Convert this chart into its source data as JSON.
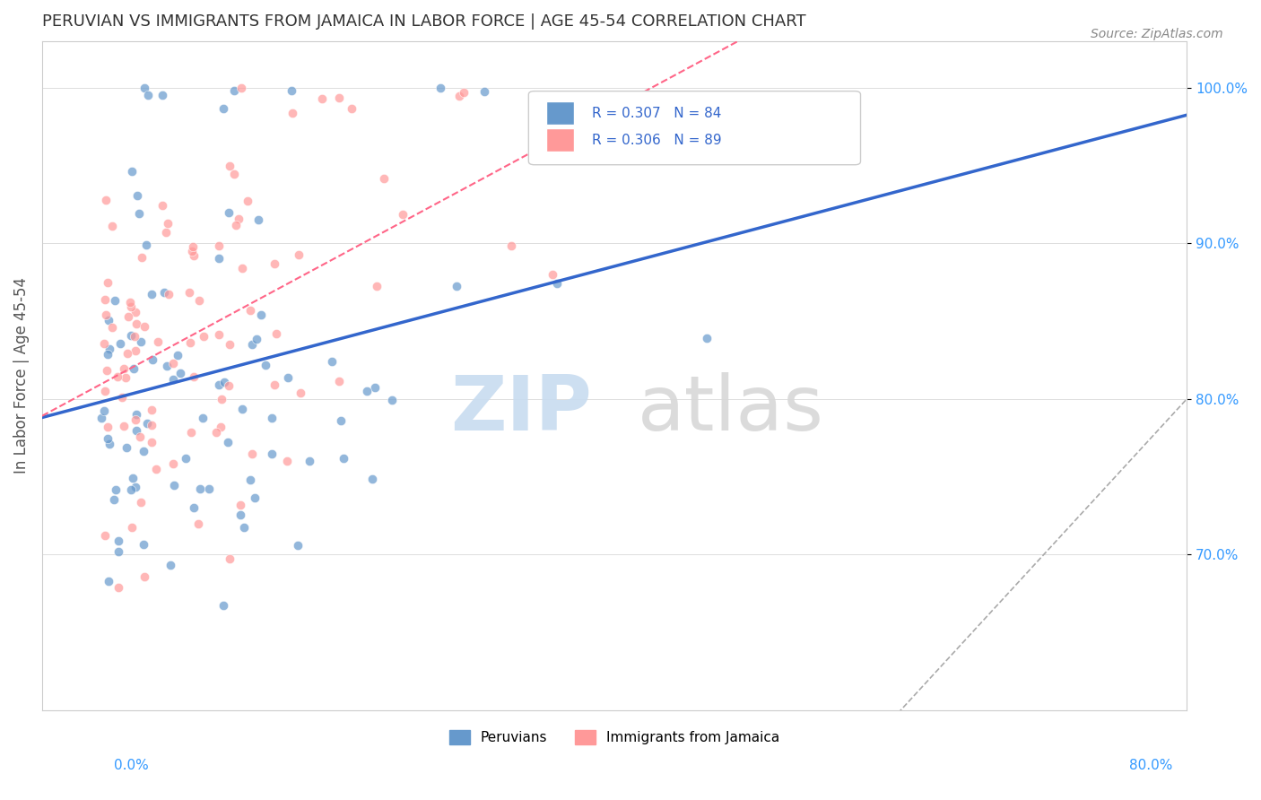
{
  "title": "PERUVIAN VS IMMIGRANTS FROM JAMAICA IN LABOR FORCE | AGE 45-54 CORRELATION CHART",
  "source": "Source: ZipAtlas.com",
  "xlabel_bottom_left": "0.0%",
  "xlabel_bottom_right": "80.0%",
  "ylabel": "In Labor Force | Age 45-54",
  "y_tick_labels": [
    "70.0%",
    "80.0%",
    "90.0%",
    "100.0%"
  ],
  "y_tick_values": [
    0.7,
    0.8,
    0.9,
    1.0
  ],
  "x_range": [
    0.0,
    0.8
  ],
  "y_range": [
    0.6,
    1.03
  ],
  "legend_blue_r": "R = 0.307",
  "legend_blue_n": "N = 84",
  "legend_pink_r": "R = 0.306",
  "legend_pink_n": "N = 89",
  "legend_blue_label": "Peruvians",
  "legend_pink_label": "Immigrants from Jamaica",
  "blue_color": "#6699CC",
  "pink_color": "#FF9999",
  "blue_line_color": "#3366CC",
  "pink_line_color": "#FF6688",
  "ref_line_color": "#AAAAAA",
  "watermark_zip": "ZIP",
  "watermark_atlas": "atlas"
}
